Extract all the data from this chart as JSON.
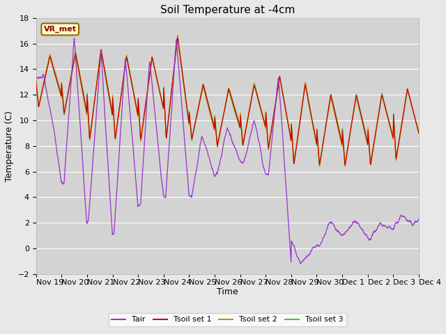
{
  "title": "Soil Temperature at -4cm",
  "xlabel": "Time",
  "ylabel": "Temperature (C)",
  "ylim": [
    -2,
    18
  ],
  "yticks": [
    -2,
    0,
    2,
    4,
    6,
    8,
    10,
    12,
    14,
    16,
    18
  ],
  "background_color": "#e8e8e8",
  "plot_bg_color": "#d3d3d3",
  "grid_color": "#ffffff",
  "line_colors": {
    "Tair": "#9933cc",
    "Tsoil1": "#cc0000",
    "Tsoil2": "#cc8800",
    "Tsoil3": "#33cc33"
  },
  "legend_labels": [
    "Tair",
    "Tsoil set 1",
    "Tsoil set 2",
    "Tsoil set 3"
  ],
  "annotation_text": "VR_met",
  "xtick_labels": [
    "Nov 19",
    "Nov 20",
    "Nov 21",
    "Nov 22",
    "Nov 23",
    "Nov 24",
    "Nov 25",
    "Nov 26",
    "Nov 27",
    "Nov 28",
    "Nov 29",
    "Nov 30",
    "Dec 1",
    "Dec 2",
    "Dec 3",
    "Dec 4"
  ],
  "title_fontsize": 11,
  "axis_fontsize": 9,
  "tick_fontsize": 8
}
